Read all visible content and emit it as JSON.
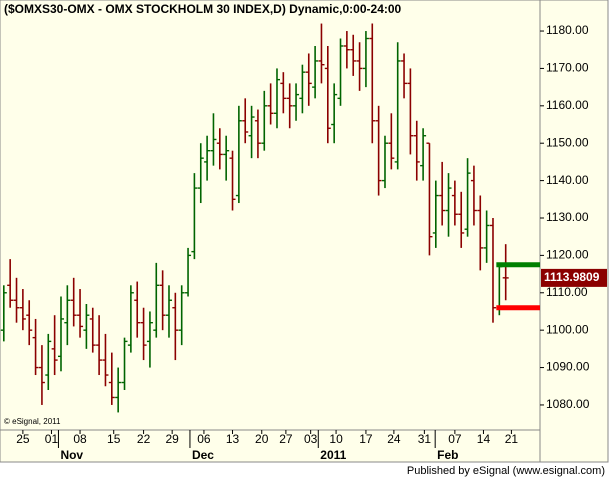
{
  "chart_data": {
    "type": "ohlc",
    "title": "($OMXS30-OMX - OMX STOCKHOLM 30 INDEX,D) Dynamic,0:00-24:00",
    "copyright": "© eSignal, 2011",
    "footer": "Published by eSignal (www.esignal.com)",
    "up_color": "#006400",
    "down_color": "#8b0000",
    "open": [
      1100,
      1112,
      1108,
      1106,
      1104,
      1098,
      1090,
      1088,
      1095,
      1093,
      1102,
      1108,
      1104,
      1100,
      1103,
      1096,
      1092,
      1086,
      1082,
      1086,
      1096,
      1108,
      1102,
      1097,
      1100,
      1112,
      1104,
      1106,
      1100,
      1110,
      1121,
      1138,
      1145,
      1148,
      1150,
      1147,
      1146,
      1136,
      1156,
      1152,
      1156,
      1150,
      1160,
      1158,
      1166,
      1162,
      1160,
      1162,
      1169,
      1165,
      1172,
      1170,
      1155,
      1162,
      1176,
      1175,
      1172,
      1170,
      1178,
      1156,
      1140,
      1150,
      1145,
      1172,
      1166,
      1152,
      1144,
      1150,
      1126,
      1136,
      1132,
      1136,
      1131,
      1127,
      1140,
      1132,
      1122,
      1128,
      1106,
      1114
    ],
    "high": [
      1112,
      1119,
      1114,
      1111,
      1108,
      1103,
      1096,
      1099,
      1104,
      1109,
      1112,
      1114,
      1111,
      1107,
      1106,
      1104,
      1099,
      1094,
      1090,
      1098,
      1112,
      1113,
      1106,
      1105,
      1118,
      1116,
      1112,
      1110,
      1112,
      1122,
      1142,
      1150,
      1152,
      1158,
      1154,
      1152,
      1148,
      1160,
      1162,
      1160,
      1159,
      1164,
      1166,
      1170,
      1169,
      1166,
      1166,
      1171,
      1174,
      1176,
      1182,
      1176,
      1166,
      1178,
      1180,
      1179,
      1177,
      1180,
      1182,
      1160,
      1152,
      1158,
      1177,
      1174,
      1170,
      1156,
      1154,
      1150,
      1140,
      1145,
      1142,
      1140,
      1137,
      1146,
      1144,
      1136,
      1132,
      1130,
      1118,
      1123
    ],
    "low": [
      1097,
      1106,
      1102,
      1100,
      1096,
      1088,
      1080,
      1084,
      1088,
      1089,
      1096,
      1101,
      1098,
      1095,
      1094,
      1088,
      1085,
      1080,
      1078,
      1084,
      1094,
      1098,
      1092,
      1090,
      1098,
      1100,
      1098,
      1092,
      1096,
      1109,
      1119,
      1134,
      1140,
      1144,
      1143,
      1140,
      1132,
      1134,
      1150,
      1146,
      1146,
      1148,
      1155,
      1154,
      1158,
      1154,
      1156,
      1158,
      1160,
      1162,
      1166,
      1150,
      1150,
      1160,
      1170,
      1168,
      1164,
      1165,
      1150,
      1136,
      1138,
      1143,
      1143,
      1162,
      1147,
      1140,
      1140,
      1120,
      1122,
      1128,
      1125,
      1128,
      1122,
      1125,
      1128,
      1116,
      1118,
      1102,
      1104,
      1108
    ],
    "close": [
      1110,
      1108,
      1106,
      1103,
      1100,
      1090,
      1086,
      1097,
      1092,
      1103,
      1108,
      1104,
      1101,
      1104,
      1096,
      1092,
      1088,
      1082,
      1086,
      1097,
      1110,
      1102,
      1096,
      1102,
      1112,
      1104,
      1108,
      1100,
      1110,
      1120,
      1138,
      1146,
      1148,
      1151,
      1147,
      1148,
      1135,
      1156,
      1153,
      1157,
      1150,
      1160,
      1158,
      1167,
      1162,
      1160,
      1163,
      1169,
      1166,
      1172,
      1171,
      1154,
      1163,
      1176,
      1175,
      1172,
      1170,
      1178,
      1156,
      1140,
      1150,
      1146,
      1172,
      1166,
      1152,
      1145,
      1152,
      1125,
      1136,
      1132,
      1138,
      1131,
      1126,
      1142,
      1132,
      1122,
      1128,
      1106,
      1117,
      1113.9809
    ],
    "last_value": 1113.9809,
    "levels": [
      {
        "value": 1117.5,
        "color": "#008000"
      },
      {
        "value": 1106,
        "color": "#ff0000"
      }
    ],
    "ylim": [
      1073.3,
      1188.3
    ],
    "yticks": [
      {
        "value": 1080,
        "label": "1080.00"
      },
      {
        "value": 1090,
        "label": "1090.00"
      },
      {
        "value": 1100,
        "label": "1100.00"
      },
      {
        "value": 1110,
        "label": "1110.00"
      },
      {
        "value": 1120,
        "label": "1120.00"
      },
      {
        "value": 1130,
        "label": "1130.00"
      },
      {
        "value": 1140,
        "label": "1140.00"
      },
      {
        "value": 1150,
        "label": "1150.00"
      },
      {
        "value": 1160,
        "label": "1160.00"
      },
      {
        "value": 1170,
        "label": "1170.00"
      },
      {
        "value": 1180,
        "label": "1180.00"
      }
    ],
    "xlim": [
      -0.6,
      84.4
    ],
    "xticks": [
      {
        "value": 3,
        "label": "25"
      },
      {
        "value": 7.5,
        "label": "01"
      },
      {
        "value": 12,
        "label": "08"
      },
      {
        "value": 17.3,
        "label": "15"
      },
      {
        "value": 22,
        "label": "22"
      },
      {
        "value": 26.5,
        "label": "29"
      },
      {
        "value": 31.5,
        "label": "06"
      },
      {
        "value": 36,
        "label": "13"
      },
      {
        "value": 40.6,
        "label": "20"
      },
      {
        "value": 44.4,
        "label": "27"
      },
      {
        "value": 48.3,
        "label": "03"
      },
      {
        "value": 52.3,
        "label": "10"
      },
      {
        "value": 57,
        "label": "17"
      },
      {
        "value": 61.4,
        "label": "24"
      },
      {
        "value": 66.2,
        "label": "31"
      },
      {
        "value": 71,
        "label": "07"
      },
      {
        "value": 75.5,
        "label": "14"
      },
      {
        "value": 79.9,
        "label": "21"
      }
    ],
    "month_ticks": [
      {
        "value": 8.6,
        "label": "Nov"
      },
      {
        "value": 29.3,
        "label": "Dec"
      },
      {
        "value": 49.5,
        "label": "2011"
      },
      {
        "value": 67.9,
        "label": "Feb"
      }
    ]
  }
}
